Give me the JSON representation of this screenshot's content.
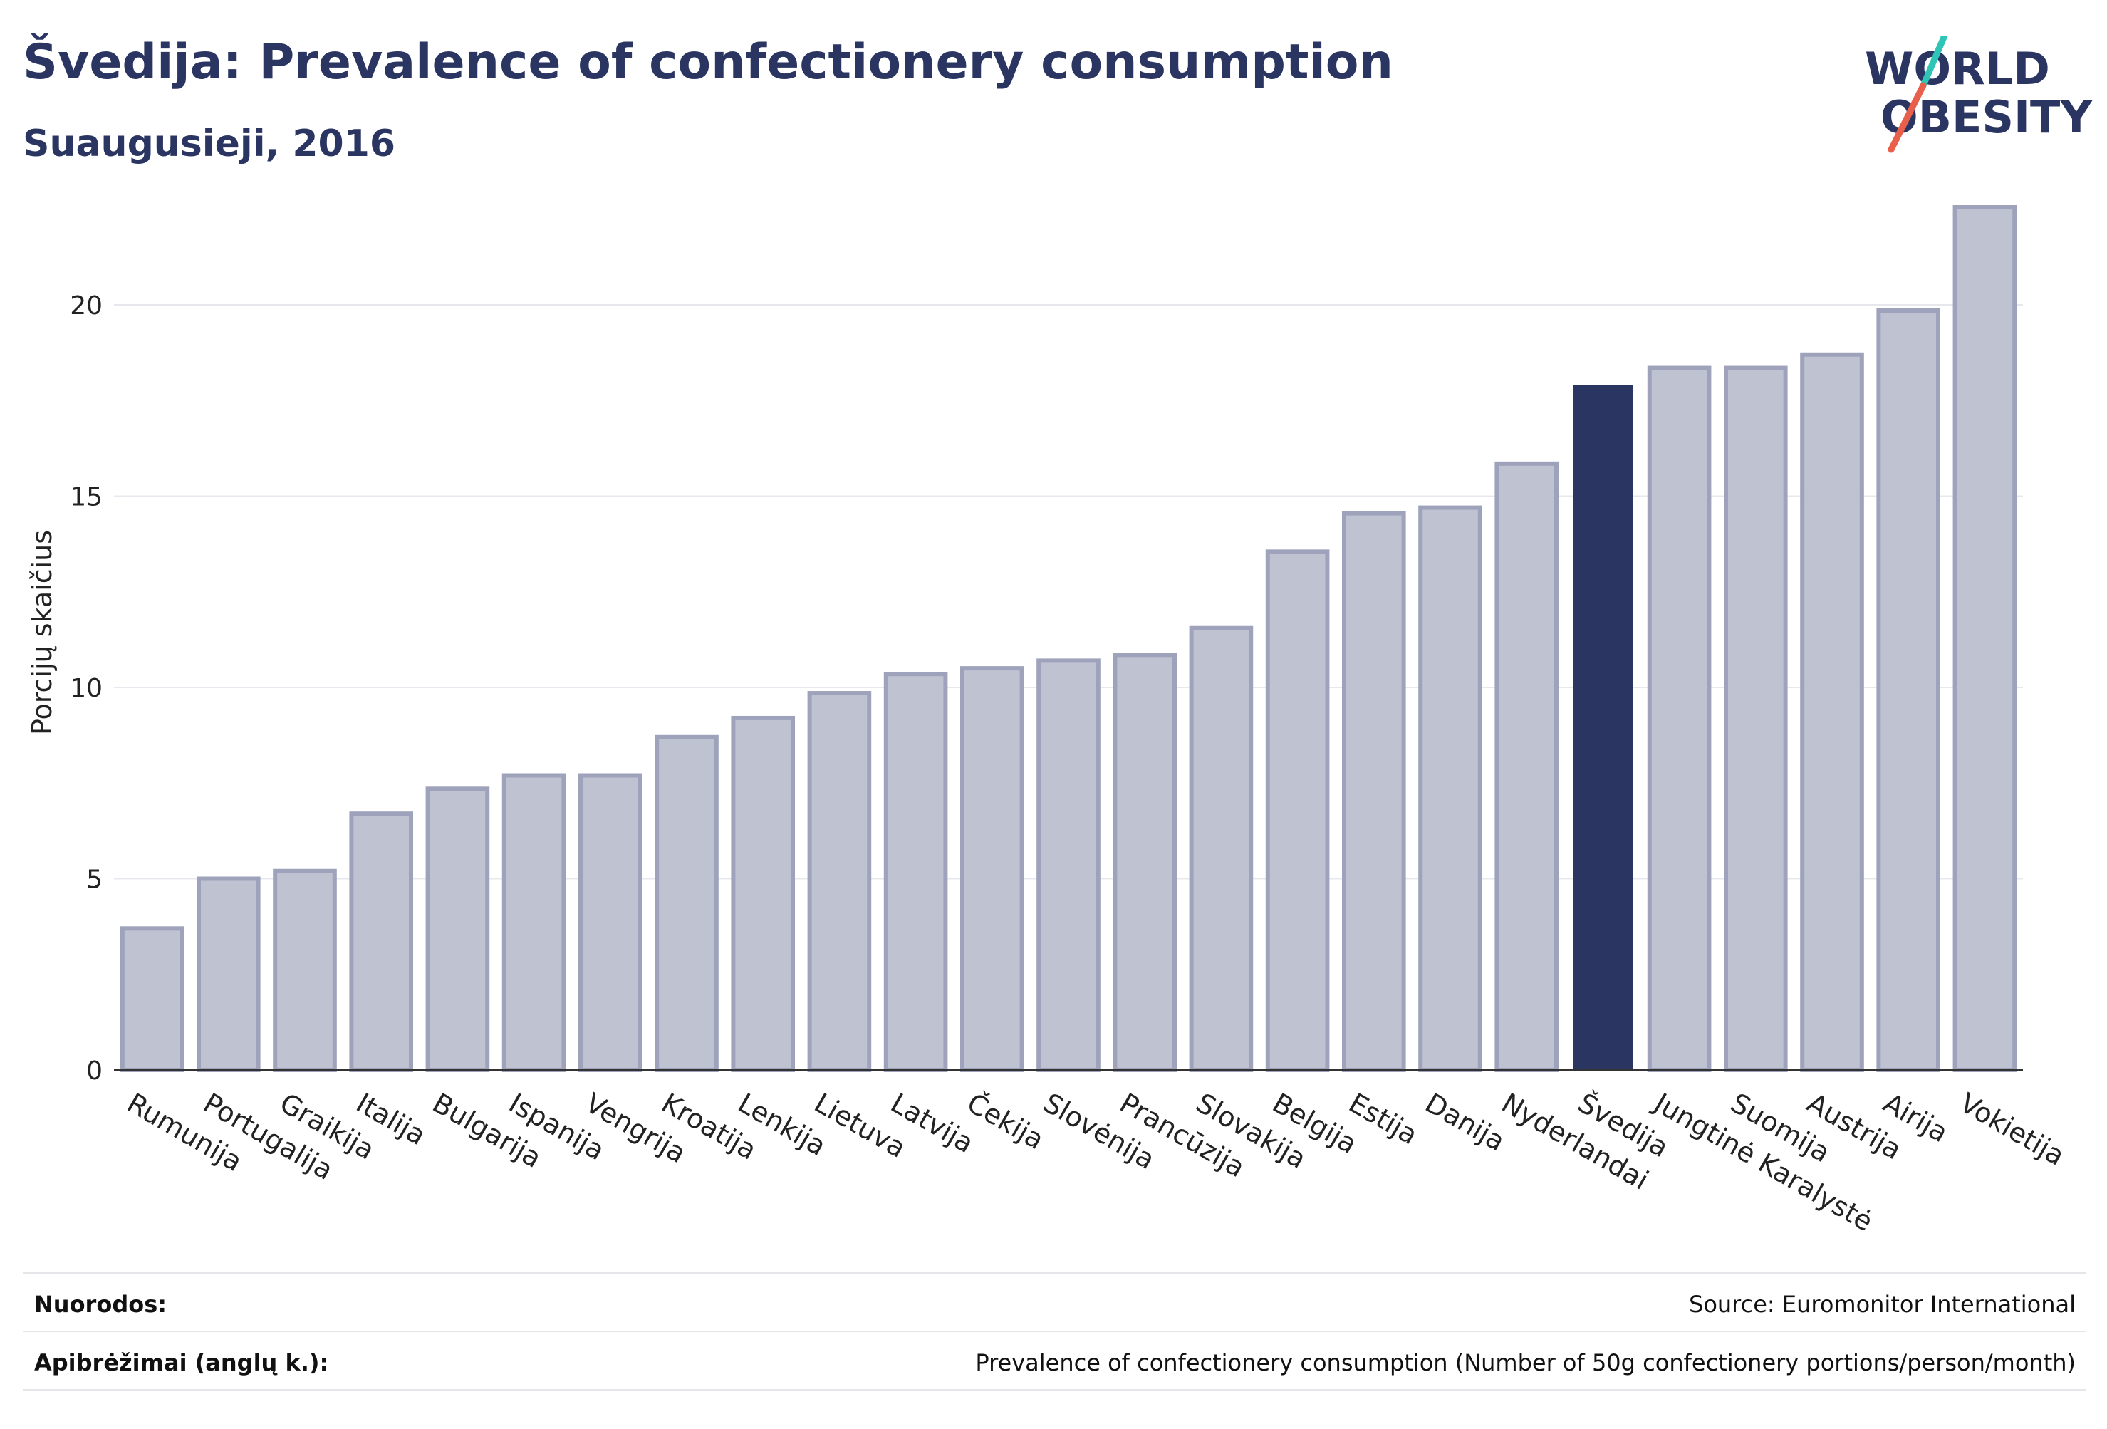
{
  "header": {
    "title": "Švedija: Prevalence of confectionery consumption",
    "subtitle": "Suaugusieji, 2016"
  },
  "logo": {
    "line1": "WORLD",
    "line2": "OBESITY",
    "colors": {
      "text": "#2a3561",
      "slash_top": "#2ec4b6",
      "slash_bottom": "#e8604c"
    }
  },
  "chart_data": {
    "type": "bar",
    "categories": [
      "Rumunija",
      "Portugalija",
      "Graikija",
      "Italija",
      "Bulgarija",
      "Ispanija",
      "Vengrija",
      "Kroatija",
      "Lenkija",
      "Lietuva",
      "Latvija",
      "Čekija",
      "Slovėnija",
      "Prancūzija",
      "Slovakija",
      "Belgija",
      "Estija",
      "Danija",
      "Nyderlandai",
      "Švedija",
      "Jungtinė Karalystė",
      "Suomija",
      "Austrija",
      "Airija",
      "Vokietija"
    ],
    "values": [
      3.7,
      5.0,
      5.2,
      6.7,
      7.35,
      7.7,
      7.7,
      8.7,
      9.2,
      9.85,
      10.35,
      10.5,
      10.7,
      10.85,
      11.55,
      13.55,
      14.55,
      14.7,
      15.85,
      17.9,
      18.35,
      18.35,
      18.7,
      19.85,
      22.55
    ],
    "highlight": "Švedija",
    "ylabel": "Porcijų skaičius",
    "xlabel": "",
    "yticks": [
      0,
      5,
      10,
      15,
      20
    ],
    "ylim": [
      0,
      23.5
    ],
    "grid": true,
    "colors": {
      "bar": "#bfc2d0",
      "bar_border": "#9ea3bb",
      "highlight": "#2a3561",
      "grid": "#e6e8ee",
      "axis": "#333333"
    }
  },
  "footer": {
    "references_label": "Nuorodos:",
    "references_value": "Source: Euromonitor International",
    "definitions_label": "Apibrėžimai (anglų k.):",
    "definitions_value": "Prevalence of confectionery consumption (Number of 50g confectionery portions/person/month)"
  }
}
